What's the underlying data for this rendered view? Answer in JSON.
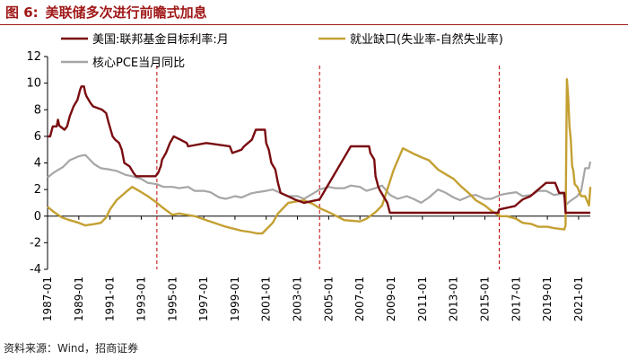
{
  "figure": {
    "number": "图 6:",
    "title": "美联储多次进行前瞻式加息",
    "source": "资料来源：Wind，招商证券"
  },
  "chart_data": {
    "type": "line",
    "title": "",
    "xlabel": "",
    "ylabel": "",
    "ylim": [
      -4,
      12
    ],
    "yticks": [
      -4,
      -2,
      0,
      2,
      4,
      6,
      8,
      10,
      12
    ],
    "xlim": [
      "1987-01",
      "2021-10"
    ],
    "xticks": [
      "1987-01",
      "1989-01",
      "1991-01",
      "1993-01",
      "1995-01",
      "1997-01",
      "1999-01",
      "2001-01",
      "2003-01",
      "2005-01",
      "2007-01",
      "2009-01",
      "2011-01",
      "2013-01",
      "2015-01",
      "2017-01",
      "2019-01",
      "2021-01"
    ],
    "grid": false,
    "legend": "top",
    "colors": {
      "fed": "#7a0c10",
      "gap": "#c4a032",
      "pce": "#a6a6a6",
      "marker": "#c00000",
      "title": "#a01818"
    },
    "vlines": [
      "1994-01",
      "2004-06",
      "2015-12"
    ],
    "series": [
      {
        "name": "美国:联邦基金目标利率:月",
        "key": "fed",
        "points": [
          [
            "1987-01",
            6.0
          ],
          [
            "1987-03",
            6.0
          ],
          [
            "1987-05",
            6.75
          ],
          [
            "1987-08",
            6.75
          ],
          [
            "1987-09",
            7.25
          ],
          [
            "1987-10",
            6.8
          ],
          [
            "1988-02",
            6.5
          ],
          [
            "1988-04",
            6.75
          ],
          [
            "1988-06",
            7.5
          ],
          [
            "1988-09",
            8.25
          ],
          [
            "1988-12",
            8.75
          ],
          [
            "1989-02",
            9.5
          ],
          [
            "1989-03",
            9.75
          ],
          [
            "1989-05",
            9.75
          ],
          [
            "1989-06",
            9.25
          ],
          [
            "1989-07",
            9.0
          ],
          [
            "1989-10",
            8.5
          ],
          [
            "1989-12",
            8.25
          ],
          [
            "1990-07",
            8.0
          ],
          [
            "1990-10",
            7.75
          ],
          [
            "1990-12",
            7.0
          ],
          [
            "1991-03",
            6.0
          ],
          [
            "1991-05",
            5.75
          ],
          [
            "1991-08",
            5.5
          ],
          [
            "1991-10",
            5.0
          ],
          [
            "1991-12",
            4.0
          ],
          [
            "1992-04",
            3.75
          ],
          [
            "1992-07",
            3.25
          ],
          [
            "1992-09",
            3.0
          ],
          [
            "1993-12",
            3.0
          ],
          [
            "1994-02",
            3.25
          ],
          [
            "1994-04",
            3.75
          ],
          [
            "1994-05",
            4.25
          ],
          [
            "1994-08",
            4.75
          ],
          [
            "1994-11",
            5.5
          ],
          [
            "1995-02",
            6.0
          ],
          [
            "1995-07",
            5.75
          ],
          [
            "1995-12",
            5.5
          ],
          [
            "1996-01",
            5.25
          ],
          [
            "1997-03",
            5.5
          ],
          [
            "1998-09",
            5.25
          ],
          [
            "1998-10",
            5.0
          ],
          [
            "1998-11",
            4.75
          ],
          [
            "1999-06",
            5.0
          ],
          [
            "1999-08",
            5.25
          ],
          [
            "1999-11",
            5.5
          ],
          [
            "2000-02",
            5.75
          ],
          [
            "2000-03",
            6.0
          ],
          [
            "2000-05",
            6.5
          ],
          [
            "2000-12",
            6.5
          ],
          [
            "2001-01",
            5.5
          ],
          [
            "2001-03",
            5.0
          ],
          [
            "2001-05",
            4.0
          ],
          [
            "2001-08",
            3.5
          ],
          [
            "2001-10",
            2.5
          ],
          [
            "2001-12",
            1.75
          ],
          [
            "2002-11",
            1.25
          ],
          [
            "2003-06",
            1.0
          ],
          [
            "2004-06",
            1.25
          ],
          [
            "2004-12",
            2.25
          ],
          [
            "2005-06",
            3.25
          ],
          [
            "2005-12",
            4.25
          ],
          [
            "2006-06",
            5.25
          ],
          [
            "2007-08",
            5.25
          ],
          [
            "2007-09",
            4.75
          ],
          [
            "2007-12",
            4.25
          ],
          [
            "2008-01",
            3.0
          ],
          [
            "2008-03",
            2.25
          ],
          [
            "2008-04",
            2.0
          ],
          [
            "2008-10",
            1.0
          ],
          [
            "2008-12",
            0.25
          ],
          [
            "2015-11",
            0.25
          ],
          [
            "2015-12",
            0.5
          ],
          [
            "2016-12",
            0.75
          ],
          [
            "2017-03",
            1.0
          ],
          [
            "2017-06",
            1.25
          ],
          [
            "2017-12",
            1.5
          ],
          [
            "2018-03",
            1.75
          ],
          [
            "2018-06",
            2.0
          ],
          [
            "2018-09",
            2.25
          ],
          [
            "2018-12",
            2.5
          ],
          [
            "2019-07",
            2.5
          ],
          [
            "2019-08",
            2.25
          ],
          [
            "2019-09",
            2.0
          ],
          [
            "2019-10",
            1.75
          ],
          [
            "2020-02",
            1.75
          ],
          [
            "2020-03",
            0.25
          ],
          [
            "2021-10",
            0.25
          ]
        ]
      },
      {
        "name": "就业缺口(失业率-自然失业率)",
        "key": "gap",
        "points": [
          [
            "1987-01",
            0.7
          ],
          [
            "1987-06",
            0.3
          ],
          [
            "1987-12",
            -0.1
          ],
          [
            "1988-06",
            -0.3
          ],
          [
            "1989-01",
            -0.5
          ],
          [
            "1989-06",
            -0.7
          ],
          [
            "1990-01",
            -0.6
          ],
          [
            "1990-06",
            -0.5
          ],
          [
            "1990-10",
            -0.1
          ],
          [
            "1991-01",
            0.5
          ],
          [
            "1991-06",
            1.2
          ],
          [
            "1992-01",
            1.8
          ],
          [
            "1992-06",
            2.2
          ],
          [
            "1993-01",
            1.8
          ],
          [
            "1993-06",
            1.5
          ],
          [
            "1994-01",
            1.0
          ],
          [
            "1994-06",
            0.6
          ],
          [
            "1995-01",
            0.1
          ],
          [
            "1995-06",
            0.2
          ],
          [
            "1996-06",
            0.0
          ],
          [
            "1997-06",
            -0.4
          ],
          [
            "1998-06",
            -0.8
          ],
          [
            "1999-06",
            -1.1
          ],
          [
            "2000-01",
            -1.2
          ],
          [
            "2000-06",
            -1.3
          ],
          [
            "2000-10",
            -1.3
          ],
          [
            "2001-01",
            -1.0
          ],
          [
            "2001-06",
            -0.5
          ],
          [
            "2001-10",
            0.2
          ],
          [
            "2002-06",
            1.0
          ],
          [
            "2003-06",
            1.2
          ],
          [
            "2004-01",
            0.9
          ],
          [
            "2004-06",
            0.6
          ],
          [
            "2005-01",
            0.3
          ],
          [
            "2006-01",
            -0.3
          ],
          [
            "2007-01",
            -0.4
          ],
          [
            "2007-06",
            -0.2
          ],
          [
            "2008-01",
            0.3
          ],
          [
            "2008-06",
            0.8
          ],
          [
            "2008-10",
            2.0
          ],
          [
            "2009-03",
            3.5
          ],
          [
            "2009-10",
            5.1
          ],
          [
            "2010-06",
            4.7
          ],
          [
            "2011-01",
            4.4
          ],
          [
            "2011-06",
            4.2
          ],
          [
            "2012-01",
            3.5
          ],
          [
            "2012-06",
            3.2
          ],
          [
            "2013-01",
            2.8
          ],
          [
            "2013-06",
            2.3
          ],
          [
            "2014-01",
            1.7
          ],
          [
            "2014-06",
            1.2
          ],
          [
            "2015-01",
            0.8
          ],
          [
            "2015-06",
            0.4
          ],
          [
            "2016-01",
            0.0
          ],
          [
            "2016-06",
            0.0
          ],
          [
            "2017-01",
            -0.2
          ],
          [
            "2017-06",
            -0.5
          ],
          [
            "2018-01",
            -0.6
          ],
          [
            "2018-06",
            -0.8
          ],
          [
            "2019-01",
            -0.8
          ],
          [
            "2019-06",
            -0.9
          ],
          [
            "2020-02",
            -1.0
          ],
          [
            "2020-03",
            -0.7
          ],
          [
            "2020-04",
            10.3
          ],
          [
            "2020-05",
            9.0
          ],
          [
            "2020-06",
            6.7
          ],
          [
            "2020-07",
            5.8
          ],
          [
            "2020-08",
            3.8
          ],
          [
            "2020-09",
            3.4
          ],
          [
            "2020-10",
            2.4
          ],
          [
            "2020-12",
            2.2
          ],
          [
            "2021-03",
            1.5
          ],
          [
            "2021-06",
            1.5
          ],
          [
            "2021-09",
            0.8
          ],
          [
            "2021-10",
            2.2
          ]
        ]
      },
      {
        "name": "核心PCE当月同比",
        "key": "pce",
        "points": [
          [
            "1987-01",
            2.9
          ],
          [
            "1987-06",
            3.3
          ],
          [
            "1988-01",
            3.7
          ],
          [
            "1988-06",
            4.2
          ],
          [
            "1989-01",
            4.5
          ],
          [
            "1989-06",
            4.6
          ],
          [
            "1990-01",
            3.9
          ],
          [
            "1990-06",
            3.6
          ],
          [
            "1991-01",
            3.5
          ],
          [
            "1991-06",
            3.4
          ],
          [
            "1992-01",
            3.1
          ],
          [
            "1992-06",
            3.0
          ],
          [
            "1993-01",
            2.8
          ],
          [
            "1993-06",
            2.5
          ],
          [
            "1994-01",
            2.4
          ],
          [
            "1994-06",
            2.2
          ],
          [
            "1995-01",
            2.2
          ],
          [
            "1995-06",
            2.1
          ],
          [
            "1996-01",
            2.2
          ],
          [
            "1996-06",
            1.9
          ],
          [
            "1997-01",
            1.9
          ],
          [
            "1997-06",
            1.8
          ],
          [
            "1998-01",
            1.4
          ],
          [
            "1998-06",
            1.3
          ],
          [
            "1999-01",
            1.5
          ],
          [
            "1999-06",
            1.4
          ],
          [
            "2000-01",
            1.7
          ],
          [
            "2000-06",
            1.8
          ],
          [
            "2001-01",
            1.9
          ],
          [
            "2001-06",
            2.0
          ],
          [
            "2002-01",
            1.7
          ],
          [
            "2002-06",
            1.5
          ],
          [
            "2003-01",
            1.5
          ],
          [
            "2003-06",
            1.3
          ],
          [
            "2004-01",
            1.7
          ],
          [
            "2004-06",
            2.0
          ],
          [
            "2005-01",
            2.2
          ],
          [
            "2005-06",
            2.1
          ],
          [
            "2006-01",
            2.1
          ],
          [
            "2006-06",
            2.3
          ],
          [
            "2007-01",
            2.2
          ],
          [
            "2007-06",
            1.9
          ],
          [
            "2008-01",
            2.1
          ],
          [
            "2008-06",
            2.3
          ],
          [
            "2008-12",
            1.6
          ],
          [
            "2009-06",
            1.3
          ],
          [
            "2010-01",
            1.5
          ],
          [
            "2010-06",
            1.3
          ],
          [
            "2010-12",
            1.0
          ],
          [
            "2011-06",
            1.4
          ],
          [
            "2012-01",
            2.0
          ],
          [
            "2012-06",
            1.8
          ],
          [
            "2013-01",
            1.4
          ],
          [
            "2013-06",
            1.2
          ],
          [
            "2014-01",
            1.5
          ],
          [
            "2014-06",
            1.6
          ],
          [
            "2015-01",
            1.3
          ],
          [
            "2015-06",
            1.3
          ],
          [
            "2016-01",
            1.6
          ],
          [
            "2016-06",
            1.7
          ],
          [
            "2017-01",
            1.8
          ],
          [
            "2017-06",
            1.5
          ],
          [
            "2018-01",
            1.6
          ],
          [
            "2018-06",
            1.9
          ],
          [
            "2018-12",
            1.9
          ],
          [
            "2019-06",
            1.6
          ],
          [
            "2020-01",
            1.7
          ],
          [
            "2020-04",
            0.9
          ],
          [
            "2020-06",
            1.1
          ],
          [
            "2020-12",
            1.5
          ],
          [
            "2021-03",
            1.9
          ],
          [
            "2021-06",
            3.6
          ],
          [
            "2021-09",
            3.6
          ],
          [
            "2021-10",
            4.1
          ]
        ]
      }
    ]
  }
}
